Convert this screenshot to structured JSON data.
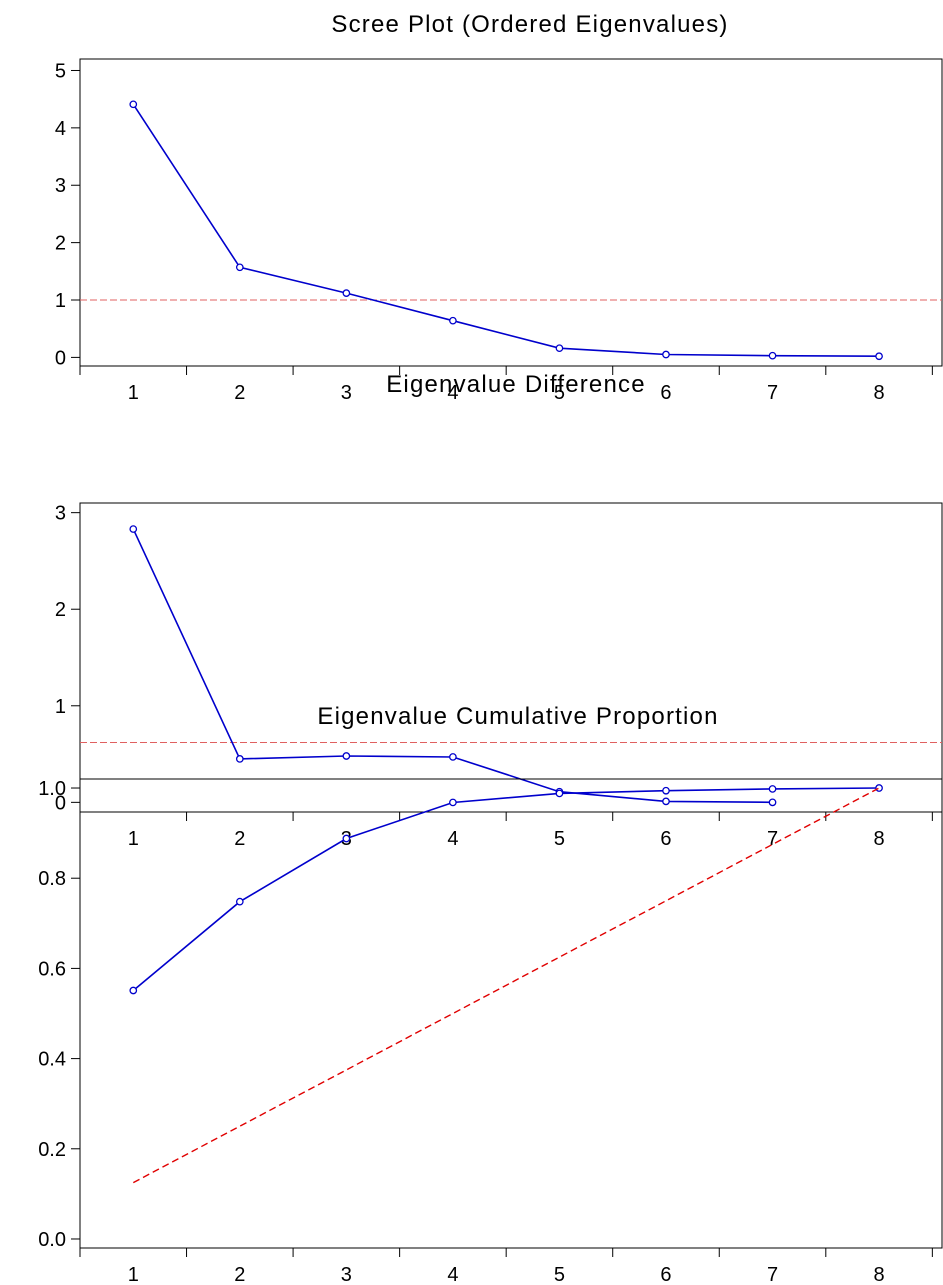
{
  "chart_data": [
    {
      "type": "line",
      "title": "Scree Plot (Ordered Eigenvalues)",
      "xlabel": "",
      "ylabel": "",
      "categories": [
        "1",
        "2",
        "3",
        "4",
        "5",
        "6",
        "7",
        "8"
      ],
      "x": [
        1,
        2,
        3,
        4,
        5,
        6,
        7,
        8
      ],
      "series": [
        {
          "values": [
            4.41,
            1.57,
            1.12,
            0.64,
            0.16,
            0.05,
            0.03,
            0.02
          ],
          "color": "#0000cc",
          "style": "solid",
          "markers": true
        }
      ],
      "reference_line": {
        "type": "horizontal",
        "value": 1.0,
        "color": "#e06060",
        "style": "dashed"
      },
      "ylim": [
        -0.15,
        5.2
      ],
      "yticks": [
        "0",
        "1",
        "2",
        "3",
        "4",
        "5"
      ],
      "ytick_values": [
        0,
        1,
        2,
        3,
        4,
        5
      ],
      "xlim": [
        0.5,
        8.6
      ],
      "grid": false,
      "legend": "none"
    },
    {
      "type": "line",
      "title": "Eigenvalue Difference",
      "xlabel": "",
      "ylabel": "",
      "categories": [
        "1",
        "2",
        "3",
        "4",
        "5",
        "6",
        "7",
        "8"
      ],
      "x": [
        1,
        2,
        3,
        4,
        5,
        6,
        7
      ],
      "series": [
        {
          "values": [
            2.83,
            0.45,
            0.48,
            0.47,
            0.11,
            0.01,
            0.0
          ],
          "color": "#0000cc",
          "style": "solid",
          "markers": true
        }
      ],
      "reference_line": {
        "type": "horizontal",
        "value": 0.62,
        "color": "#e06060",
        "style": "dashed"
      },
      "ylim": [
        -0.1,
        3.1
      ],
      "yticks": [
        "0",
        "1",
        "2",
        "3"
      ],
      "ytick_values": [
        0,
        1,
        2,
        3
      ],
      "xlim": [
        0.5,
        8.6
      ],
      "grid": false,
      "legend": "none"
    },
    {
      "type": "line",
      "title": "Eigenvalue Cumulative Proportion",
      "xlabel": "",
      "ylabel": "",
      "categories": [
        "1",
        "2",
        "3",
        "4",
        "5",
        "6",
        "7",
        "8"
      ],
      "x": [
        1,
        2,
        3,
        4,
        5,
        6,
        7,
        8
      ],
      "series": [
        {
          "values": [
            0.551,
            0.748,
            0.888,
            0.968,
            0.988,
            0.994,
            0.998,
            1.0
          ],
          "color": "#0000cc",
          "style": "solid",
          "markers": true
        },
        {
          "values": [
            0.125,
            0.25,
            0.375,
            0.5,
            0.625,
            0.75,
            0.875,
            1.0
          ],
          "color": "#e00000",
          "style": "dashed",
          "markers": false
        }
      ],
      "ylim": [
        -0.02,
        1.02
      ],
      "yticks": [
        "0.0",
        "0.2",
        "0.4",
        "0.6",
        "0.8",
        "1.0"
      ],
      "ytick_values": [
        0,
        0.2,
        0.4,
        0.6,
        0.8,
        1.0
      ],
      "xlim": [
        0.5,
        8.6
      ],
      "grid": false,
      "legend": "none"
    }
  ]
}
